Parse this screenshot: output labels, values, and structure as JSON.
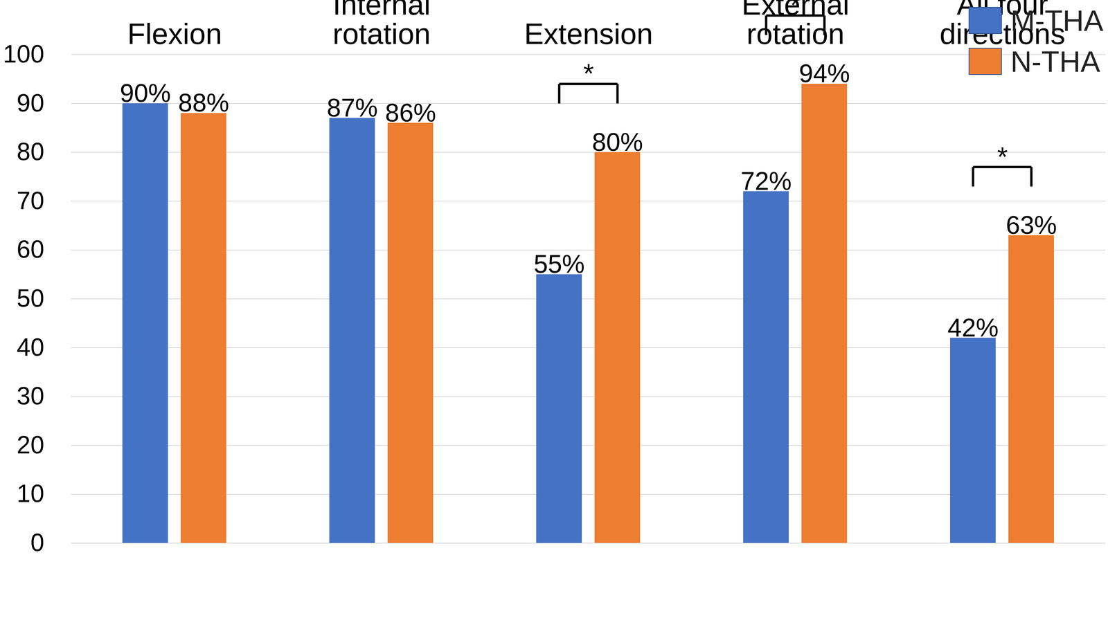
{
  "chart_data": {
    "type": "bar",
    "categories": [
      "Flexion",
      "Internal rotation",
      "Extension",
      "External rotation",
      "All four directions"
    ],
    "series": [
      {
        "name": "M-THA",
        "color": "#4472c4",
        "values": [
          90,
          87,
          55,
          72,
          42
        ],
        "value_labels": [
          "90%",
          "87%",
          "55%",
          "72%",
          "42%"
        ]
      },
      {
        "name": "N-THA",
        "color": "#ed7d31",
        "values": [
          88,
          86,
          80,
          94,
          63
        ],
        "value_labels": [
          "88%",
          "86%",
          "80%",
          "94%",
          "63%"
        ]
      }
    ],
    "ylim": [
      0,
      100
    ],
    "yticks": [
      0,
      10,
      20,
      30,
      40,
      50,
      60,
      70,
      80,
      90,
      100
    ],
    "grid": true,
    "data_labels": true,
    "legend": "top-right",
    "annotations": [
      {
        "category": "Extension",
        "text": "*"
      },
      {
        "category": "External rotation",
        "text": "*"
      },
      {
        "category": "All four directions",
        "text": "*"
      }
    ]
  }
}
